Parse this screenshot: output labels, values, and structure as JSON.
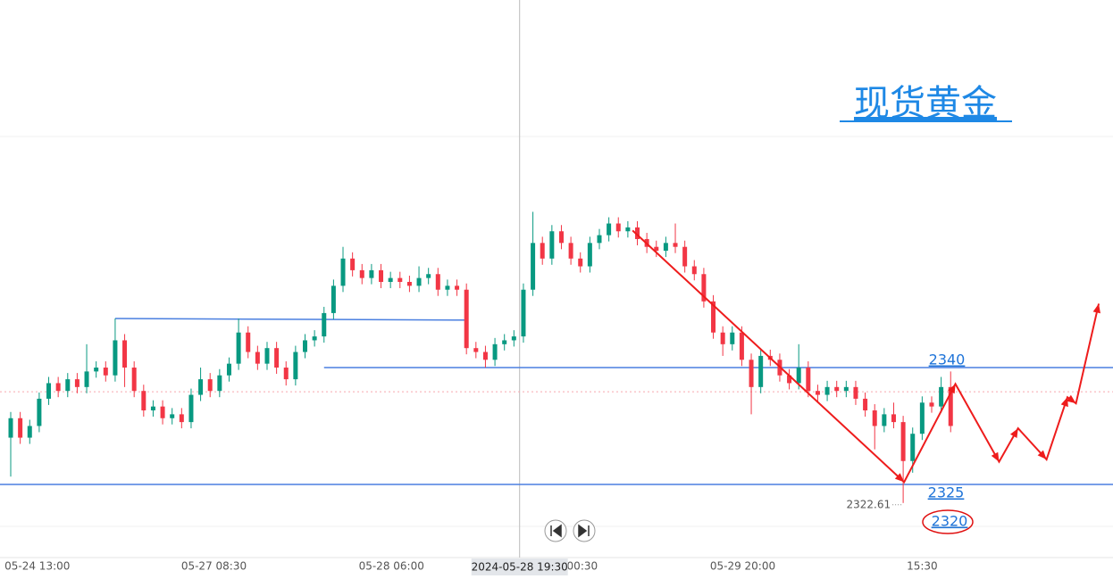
{
  "chart_data": {
    "type": "candlestick",
    "title": "现货黄金",
    "up_color": "#089981",
    "down_color": "#f23645",
    "xlim": [
      -1.13,
      116.1
    ],
    "ylim": [
      2315.6,
      2387.2
    ],
    "xticks": [
      {
        "value": 2.8,
        "label": "05-24 13:00"
      },
      {
        "value": 21.4,
        "label": "05-27 08:30"
      },
      {
        "value": 40.1,
        "label": "05-28 06:00"
      },
      {
        "value": 60.2,
        "label": "00:30"
      },
      {
        "value": 77.1,
        "label": "05-29 20:00"
      },
      {
        "value": 96.0,
        "label": "15:30"
      }
    ],
    "crosshair": {
      "value": 53.6,
      "label": "2024-05-28 19:30"
    },
    "open": [
      2331.0,
      2333.5,
      2331.0,
      2332.5,
      2336.0,
      2338.0,
      2337.0,
      2338.5,
      2337.5,
      2339.5,
      2340.0,
      2339.0,
      2343.5,
      2340.0,
      2337.0,
      2334.5,
      2335.0,
      2333.5,
      2334.0,
      2333.0,
      2336.5,
      2338.5,
      2337.0,
      2339.0,
      2340.5,
      2344.5,
      2342.0,
      2340.5,
      2342.5,
      2340.0,
      2338.5,
      2342.0,
      2343.5,
      2344.0,
      2347.0,
      2350.5,
      2354.0,
      2352.5,
      2351.5,
      2352.5,
      2351.0,
      2351.5,
      2351.0,
      2350.5,
      2351.5,
      2352.0,
      2350.0,
      2350.5,
      2350.0,
      2342.5,
      2342.0,
      2341.0,
      2343.0,
      2343.5,
      2344.0,
      2350.0,
      2356.0,
      2354.0,
      2357.5,
      2356.0,
      2354.0,
      2353.0,
      2356.0,
      2357.0,
      2358.5,
      2357.5,
      2358.0,
      2356.5,
      2355.5,
      2355.0,
      2356.0,
      2355.5,
      2353.0,
      2352.0,
      2348.5,
      2344.5,
      2343.0,
      2344.5,
      2341.0,
      2337.5,
      2341.5,
      2341.0,
      2339.0,
      2338.0,
      2340.0,
      2337.0,
      2336.5,
      2337.5,
      2337.0,
      2337.5,
      2336.0,
      2334.5,
      2332.5,
      2334.0,
      2333.0,
      2328.0,
      2331.5,
      2335.5,
      2335.0,
      2337.5
    ],
    "high": [
      2334.3,
      2334.3,
      2333.3,
      2336.8,
      2338.8,
      2338.8,
      2339.3,
      2339.3,
      2343.0,
      2340.8,
      2340.8,
      2346.3,
      2344.3,
      2340.8,
      2337.8,
      2335.8,
      2335.8,
      2334.8,
      2334.8,
      2337.3,
      2340.0,
      2339.3,
      2339.8,
      2341.3,
      2346.3,
      2345.3,
      2342.8,
      2343.3,
      2343.3,
      2340.8,
      2342.8,
      2344.3,
      2344.8,
      2347.8,
      2351.3,
      2355.5,
      2354.8,
      2353.3,
      2353.3,
      2353.3,
      2352.3,
      2352.3,
      2351.8,
      2353.0,
      2352.8,
      2352.8,
      2351.3,
      2351.3,
      2350.8,
      2343.3,
      2342.8,
      2343.8,
      2344.3,
      2344.8,
      2350.8,
      2360.0,
      2356.8,
      2358.3,
      2358.3,
      2356.8,
      2354.8,
      2356.8,
      2357.8,
      2359.3,
      2359.3,
      2358.8,
      2358.8,
      2357.3,
      2356.3,
      2356.8,
      2358.5,
      2356.3,
      2353.8,
      2352.8,
      2349.3,
      2345.3,
      2345.3,
      2345.3,
      2341.8,
      2342.3,
      2342.3,
      2341.8,
      2339.8,
      2343.0,
      2340.8,
      2337.8,
      2338.3,
      2338.3,
      2338.3,
      2338.3,
      2336.8,
      2335.3,
      2334.8,
      2335.5,
      2333.8,
      2332.3,
      2336.3,
      2336.3,
      2338.8,
      2339.5
    ],
    "low": [
      2326.0,
      2330.2,
      2330.2,
      2331.7,
      2335.2,
      2336.2,
      2336.2,
      2336.7,
      2336.7,
      2338.7,
      2338.2,
      2338.2,
      2337.5,
      2336.2,
      2333.7,
      2333.7,
      2332.7,
      2332.7,
      2332.2,
      2332.2,
      2335.7,
      2336.2,
      2336.2,
      2338.2,
      2339.7,
      2341.2,
      2339.7,
      2339.7,
      2339.2,
      2337.7,
      2337.7,
      2341.2,
      2342.7,
      2343.2,
      2346.2,
      2349.7,
      2351.7,
      2350.7,
      2350.7,
      2350.2,
      2350.2,
      2350.2,
      2349.7,
      2349.7,
      2350.7,
      2349.2,
      2349.2,
      2349.2,
      2341.7,
      2341.2,
      2340.0,
      2340.2,
      2342.2,
      2342.7,
      2343.2,
      2349.2,
      2353.2,
      2353.2,
      2355.2,
      2353.2,
      2352.2,
      2352.2,
      2355.2,
      2356.2,
      2356.7,
      2356.7,
      2355.7,
      2354.7,
      2354.2,
      2354.2,
      2354.7,
      2352.2,
      2351.2,
      2347.7,
      2343.7,
      2341.5,
      2342.2,
      2340.2,
      2334.0,
      2336.7,
      2340.2,
      2338.2,
      2337.2,
      2337.2,
      2336.2,
      2335.7,
      2335.7,
      2336.2,
      2336.2,
      2335.2,
      2333.7,
      2329.5,
      2331.7,
      2332.2,
      2322.61,
      2326.5,
      2330.7,
      2334.2,
      2334.2,
      2331.7
    ],
    "close": [
      2333.5,
      2331.0,
      2332.5,
      2336.0,
      2338.0,
      2337.0,
      2338.5,
      2337.5,
      2339.5,
      2340.0,
      2339.0,
      2343.5,
      2340.0,
      2337.0,
      2334.5,
      2335.0,
      2333.5,
      2334.0,
      2333.0,
      2336.5,
      2338.5,
      2337.0,
      2339.0,
      2340.5,
      2344.5,
      2342.0,
      2340.5,
      2342.5,
      2340.0,
      2338.5,
      2342.0,
      2343.5,
      2344.0,
      2347.0,
      2350.5,
      2354.0,
      2352.5,
      2351.5,
      2352.5,
      2351.0,
      2351.5,
      2351.0,
      2350.5,
      2351.5,
      2352.0,
      2350.0,
      2350.5,
      2350.0,
      2342.5,
      2342.0,
      2341.0,
      2343.0,
      2343.5,
      2344.0,
      2350.0,
      2356.0,
      2354.0,
      2357.5,
      2356.0,
      2354.0,
      2353.0,
      2356.0,
      2357.0,
      2358.5,
      2357.5,
      2358.0,
      2356.5,
      2355.5,
      2355.0,
      2356.0,
      2355.5,
      2353.0,
      2352.0,
      2348.5,
      2344.5,
      2343.0,
      2344.5,
      2341.0,
      2337.5,
      2341.5,
      2341.0,
      2339.0,
      2338.0,
      2340.0,
      2337.0,
      2336.5,
      2337.5,
      2337.0,
      2337.5,
      2336.0,
      2334.5,
      2332.5,
      2334.0,
      2333.0,
      2328.0,
      2331.5,
      2335.5,
      2335.0,
      2337.5,
      2332.5
    ],
    "low_label": "2322.61",
    "last_price_line": 2336.9,
    "hlines": [
      {
        "x": [
          11,
          48
        ],
        "y": [
          2346.3,
          2346.1
        ]
      },
      {
        "x": [
          33,
          116.1
        ],
        "y": [
          2340,
          2340
        ]
      },
      {
        "x": [
          -1.13,
          116.1
        ],
        "y": [
          2325,
          2325
        ]
      }
    ],
    "price_labels": [
      "2340",
      "2325",
      "2320"
    ],
    "arrow_path": {
      "x": [
        65.5,
        94.1,
        99.5,
        104.1,
        106.1,
        109.1,
        111.3,
        112.2,
        114.6
      ],
      "y": [
        2357.6,
        2325.3,
        2337.9,
        2327.9,
        2332.2,
        2328.2,
        2336.2,
        2335.4,
        2348.2
      ]
    }
  }
}
